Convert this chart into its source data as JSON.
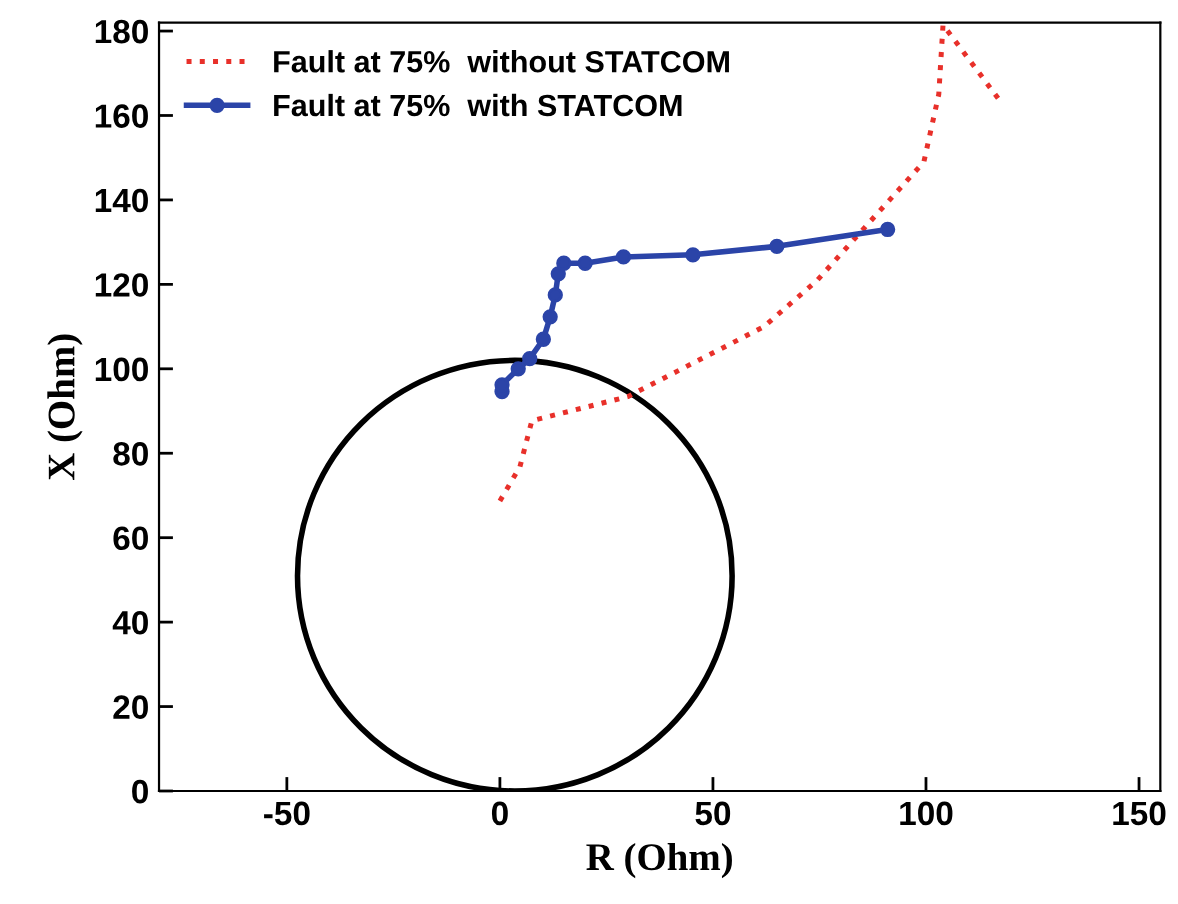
{
  "chart_data": {
    "type": "line",
    "xlabel": "R (Ohm)",
    "ylabel": "X (Ohm)",
    "xlim": [
      -80,
      155
    ],
    "ylim": [
      0,
      182
    ],
    "xticks": [
      -50,
      0,
      50,
      100,
      150
    ],
    "yticks": [
      0,
      20,
      40,
      60,
      80,
      100,
      120,
      140,
      160,
      180
    ],
    "grid": false,
    "legend": "top left",
    "series": [
      {
        "name": "Fault at 75%  without STATCOM",
        "color": "#e8302a",
        "line_style": "dotted",
        "marker": "none",
        "x": [
          0,
          4.7,
          7.5,
          30,
          62,
          74.5,
          87,
          99.5,
          103,
          104,
          118
        ],
        "values": [
          68.7,
          76.8,
          87.7,
          93.4,
          110,
          121,
          135,
          149,
          165,
          181.5,
          162.6
        ]
      },
      {
        "name": "Fault at 75%  with STATCOM",
        "color": "#2b44a8",
        "line_style": "solid",
        "marker": "circle",
        "x": [
          0.5,
          0.5,
          4.3,
          7,
          10.2,
          11.8,
          13,
          13.7,
          15,
          20,
          29,
          45.3,
          65,
          91
        ],
        "values": [
          94.6,
          96.2,
          100,
          102.4,
          107,
          112.3,
          117.5,
          122.5,
          125,
          125,
          126.5,
          127,
          129,
          133
        ]
      }
    ]
  }
}
